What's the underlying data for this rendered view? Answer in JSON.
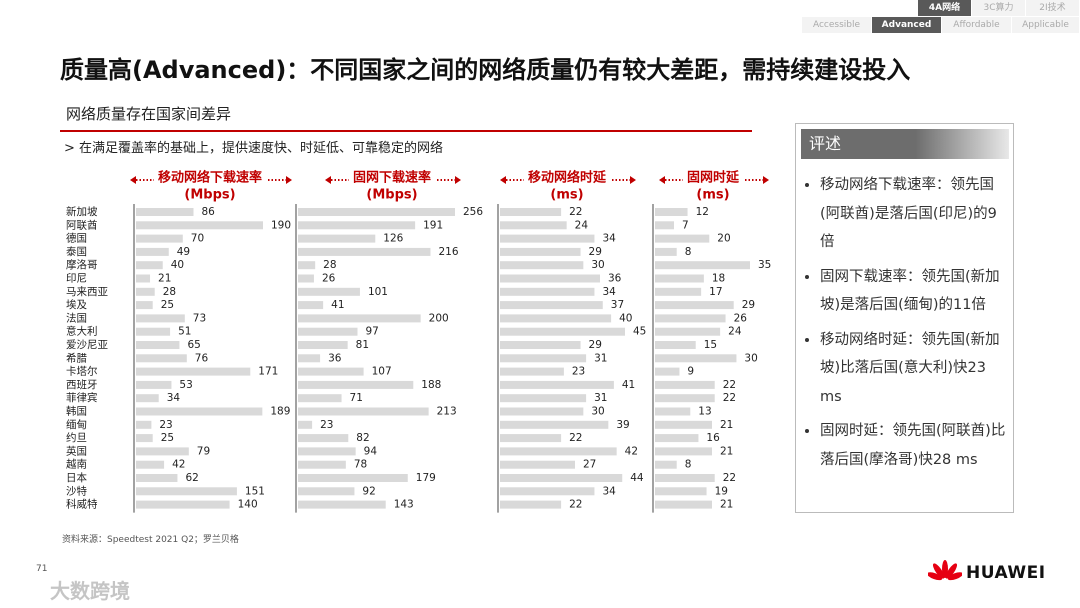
{
  "nav": {
    "top_tabs": [
      "4A网络",
      "3C算力",
      "2I技术"
    ],
    "sub_tabs": [
      "Accessible",
      "Advanced",
      "Affordable",
      "Applicable"
    ]
  },
  "title": "质量高(Advanced)：不同国家之间的网络质量仍有较大差距，需持续建设投入",
  "section_title": "网络质量存在国家间差异",
  "subtitle": "> 在满足覆盖率的基础上，提供速度快、时延低、可靠稳定的网络",
  "chart_data": [
    {
      "type": "bar",
      "title": "移动网络下载速率",
      "unit": "(Mbps)",
      "color": "#d9d9d9",
      "categories": [
        "新加坡",
        "阿联酋",
        "德国",
        "泰国",
        "摩洛哥",
        "印尼",
        "马来西亚",
        "埃及",
        "法国",
        "意大利",
        "爱沙尼亚",
        "希腊",
        "卡塔尔",
        "西班牙",
        "菲律宾",
        "韩国",
        "缅甸",
        "约旦",
        "英国",
        "越南",
        "日本",
        "沙特",
        "科威特"
      ],
      "values": [
        86,
        190,
        70,
        49,
        40,
        21,
        28,
        25,
        73,
        51,
        65,
        76,
        171,
        53,
        34,
        189,
        23,
        25,
        79,
        42,
        62,
        151,
        140
      ]
    },
    {
      "type": "bar",
      "title": "固网下载速率",
      "unit": "(Mbps)",
      "color": "#d9d9d9",
      "values": [
        256,
        191,
        126,
        216,
        28,
        26,
        101,
        41,
        200,
        97,
        81,
        36,
        107,
        188,
        71,
        213,
        23,
        82,
        94,
        78,
        179,
        92,
        143
      ]
    },
    {
      "type": "bar",
      "title": "移动网络时延",
      "unit": "(ms)",
      "color": "#d9d9d9",
      "values": [
        22,
        24,
        34,
        29,
        30,
        36,
        34,
        37,
        40,
        45,
        29,
        31,
        23,
        41,
        31,
        30,
        39,
        22,
        42,
        27,
        44,
        34,
        22
      ]
    },
    {
      "type": "bar",
      "title": "固网时延",
      "unit": "(ms)",
      "color": "#d9d9d9",
      "values": [
        12,
        7,
        20,
        8,
        35,
        18,
        17,
        29,
        26,
        24,
        15,
        30,
        9,
        22,
        22,
        13,
        21,
        16,
        21,
        8,
        22,
        19,
        21
      ]
    }
  ],
  "comments": {
    "title": "评述",
    "items": [
      "移动网络下载速率：领先国(阿联酋)是落后国(印尼)的9倍",
      "固网下载速率：领先国(新加坡)是落后国(缅甸)的11倍",
      "移动网络时延：领先国(新加坡)比落后国(意大利)快23 ms",
      "固网时延：领先国(阿联酋)比落后国(摩洛哥)快28 ms"
    ]
  },
  "source": "资料来源：Speedtest 2021 Q2；罗兰贝格",
  "page_number": "71",
  "watermark": "大数跨境",
  "logo": "HUAWEI"
}
